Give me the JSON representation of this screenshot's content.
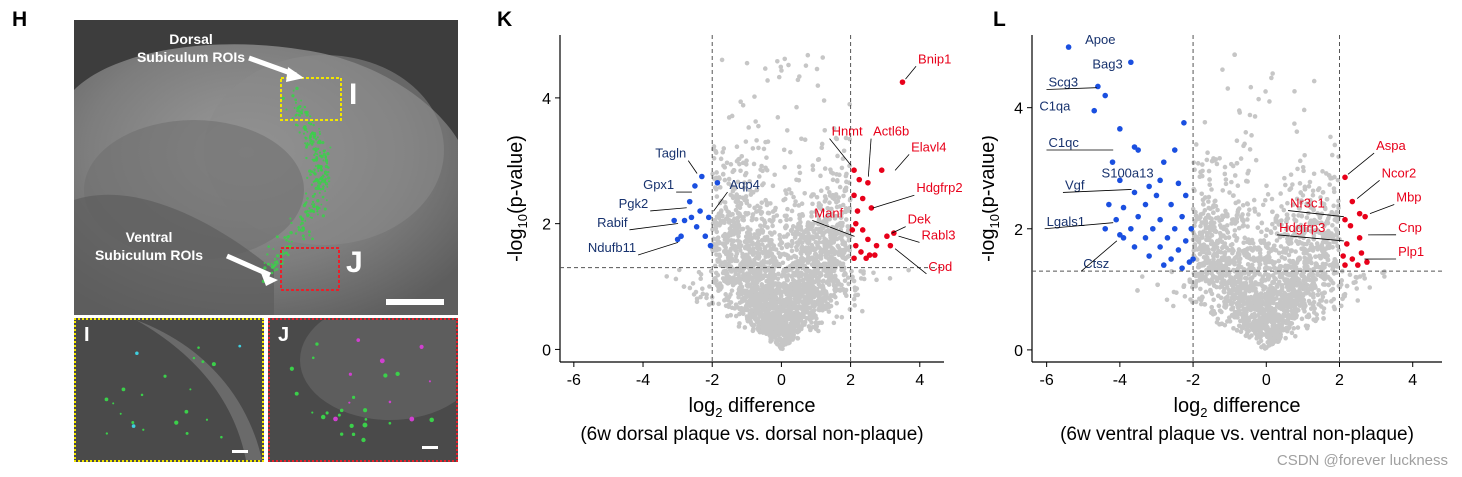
{
  "panels": {
    "h": {
      "letter": "H",
      "dorsal_label_1": "Dorsal",
      "dorsal_label_2": "Subiculum ROIs",
      "ventral_label_1": "Ventral",
      "ventral_label_2": "Subiculum ROIs",
      "roi_i": "I",
      "roi_j": "J",
      "box_colors": {
        "dorsal": "#f2e600",
        "ventral": "#e8202a"
      }
    },
    "i": {
      "letter": "I"
    },
    "j": {
      "letter": "J"
    },
    "k": {
      "letter": "K"
    },
    "l": {
      "letter": "L"
    }
  },
  "watermark": "CSDN @forever luckness",
  "colors": {
    "up": "#e8001a",
    "down": "#1a4fe0",
    "ns": "#c6c6c6",
    "label_down": "#17326e"
  },
  "chart_data": [
    {
      "type": "scatter",
      "id": "K",
      "xlabel_main": "log",
      "xlabel_sub": "2",
      "xlabel_rest": " difference",
      "xlabel_2": "(6w dorsal plaque vs. dorsal non-plaque)",
      "ylabel_main": "-log",
      "ylabel_sub": "10",
      "ylabel_rest": "(p-value)",
      "xlim": [
        -6.4,
        4.7
      ],
      "ylim": [
        -0.2,
        5.0
      ],
      "xticks": [
        -6,
        -4,
        -2,
        0,
        2,
        4
      ],
      "yticks": [
        0,
        2,
        4
      ],
      "threshold_x": [
        -2,
        2
      ],
      "threshold_y": 1.3,
      "bg_center": 0,
      "bg_spread": 1.35,
      "up_points": [
        [
          3.5,
          4.25
        ],
        [
          2.1,
          2.85
        ],
        [
          2.25,
          2.7
        ],
        [
          2.5,
          2.65
        ],
        [
          2.9,
          2.85
        ],
        [
          2.1,
          2.45
        ],
        [
          2.35,
          2.4
        ],
        [
          2.2,
          2.2
        ],
        [
          2.6,
          2.25
        ],
        [
          2.15,
          2.0
        ],
        [
          2.35,
          1.9
        ],
        [
          2.5,
          1.75
        ],
        [
          2.15,
          1.65
        ],
        [
          2.3,
          1.55
        ],
        [
          2.55,
          1.5
        ],
        [
          2.1,
          1.45
        ],
        [
          2.45,
          1.45
        ],
        [
          2.7,
          1.5
        ],
        [
          3.05,
          1.8
        ],
        [
          3.25,
          1.85
        ],
        [
          3.15,
          1.65
        ],
        [
          2.05,
          1.9
        ],
        [
          2.75,
          1.65
        ]
      ],
      "down_points": [
        [
          -2.3,
          2.75
        ],
        [
          -2.5,
          2.6
        ],
        [
          -1.85,
          2.65
        ],
        [
          -2.65,
          2.35
        ],
        [
          -2.35,
          2.2
        ],
        [
          -2.6,
          2.1
        ],
        [
          -2.8,
          2.05
        ],
        [
          -2.1,
          2.1
        ],
        [
          -3.1,
          2.05
        ],
        [
          -2.45,
          1.95
        ],
        [
          -2.2,
          1.8
        ],
        [
          -2.9,
          1.8
        ],
        [
          -2.05,
          1.65
        ],
        [
          -3.0,
          1.75
        ]
      ],
      "labels": [
        {
          "text": "Bnip1",
          "color": "up",
          "lx": 3.95,
          "ly": 4.55,
          "px": 3.5,
          "py": 4.25,
          "anchor": "start"
        },
        {
          "text": "Hnmt",
          "color": "up",
          "lx": 1.45,
          "ly": 3.4,
          "px": 2.1,
          "py": 2.88,
          "anchor": "start"
        },
        {
          "text": "Actl6b",
          "color": "up",
          "lx": 2.65,
          "ly": 3.4,
          "px": 2.6,
          "py": 2.7,
          "anchor": "start"
        },
        {
          "text": "Elavl4",
          "color": "up",
          "lx": 3.75,
          "ly": 3.15,
          "px": 3.2,
          "py": 2.8,
          "anchor": "start"
        },
        {
          "text": "Hdgfrp2",
          "color": "up",
          "lx": 3.9,
          "ly": 2.5,
          "px": 2.55,
          "py": 2.2,
          "anchor": "start"
        },
        {
          "text": "Manf",
          "color": "up",
          "lx": 0.95,
          "ly": 2.1,
          "px": 2.2,
          "py": 1.75,
          "anchor": "start"
        },
        {
          "text": "Dek",
          "color": "up",
          "lx": 3.65,
          "ly": 2.0,
          "px": 3.1,
          "py": 1.8,
          "anchor": "start"
        },
        {
          "text": "Rabl3",
          "color": "up",
          "lx": 4.05,
          "ly": 1.75,
          "px": 3.3,
          "py": 1.85,
          "anchor": "start"
        },
        {
          "text": "Cpd",
          "color": "up",
          "lx": 4.25,
          "ly": 1.25,
          "px": 3.2,
          "py": 1.65,
          "anchor": "start"
        },
        {
          "text": "Tagln",
          "color": "down",
          "lx": -2.75,
          "ly": 3.05,
          "px": -2.35,
          "py": 2.75,
          "anchor": "end"
        },
        {
          "text": "Aqp4",
          "color": "down",
          "lx": -1.5,
          "ly": 2.55,
          "px": -2.05,
          "py": 2.15,
          "anchor": "start"
        },
        {
          "text": "Gpx1",
          "color": "down",
          "lx": -3.1,
          "ly": 2.55,
          "px": -2.5,
          "py": 2.55,
          "anchor": "end"
        },
        {
          "text": "Pgk2",
          "color": "down",
          "lx": -3.85,
          "ly": 2.25,
          "px": -2.65,
          "py": 2.3,
          "anchor": "end"
        },
        {
          "text": "Rabif",
          "color": "down",
          "lx": -4.45,
          "ly": 1.95,
          "px": -2.9,
          "py": 2.05,
          "anchor": "end"
        },
        {
          "text": "Ndufb11",
          "color": "down",
          "lx": -4.2,
          "ly": 1.55,
          "px": -2.9,
          "py": 1.75,
          "anchor": "end"
        }
      ]
    },
    {
      "type": "scatter",
      "id": "L",
      "xlabel_main": "log",
      "xlabel_sub": "2",
      "xlabel_rest": " difference",
      "xlabel_2": "(6w ventral plaque vs. ventral non-plaque)",
      "ylabel_main": "-log",
      "ylabel_sub": "10",
      "ylabel_rest": "(p-value)",
      "xlim": [
        -6.4,
        4.8
      ],
      "ylim": [
        -0.2,
        5.2
      ],
      "xticks": [
        -6,
        -4,
        -2,
        0,
        2,
        4
      ],
      "yticks": [
        0,
        2,
        4
      ],
      "threshold_x": [
        -2,
        2
      ],
      "threshold_y": 1.3,
      "bg_center": 0,
      "bg_spread": 1.5,
      "up_points": [
        [
          2.15,
          2.85
        ],
        [
          2.35,
          2.45
        ],
        [
          2.55,
          2.25
        ],
        [
          2.15,
          2.15
        ],
        [
          2.7,
          2.2
        ],
        [
          2.3,
          2.05
        ],
        [
          2.55,
          1.85
        ],
        [
          2.2,
          1.75
        ],
        [
          2.6,
          1.6
        ],
        [
          2.35,
          1.5
        ],
        [
          2.15,
          1.4
        ],
        [
          2.5,
          1.4
        ],
        [
          2.75,
          1.45
        ],
        [
          2.1,
          1.55
        ]
      ],
      "down_points": [
        [
          -5.4,
          5.0
        ],
        [
          -3.7,
          4.75
        ],
        [
          -4.6,
          4.35
        ],
        [
          -4.4,
          4.2
        ],
        [
          -4.7,
          3.95
        ],
        [
          -4.0,
          3.65
        ],
        [
          -3.6,
          3.35
        ],
        [
          -2.25,
          3.75
        ],
        [
          -4.2,
          3.1
        ],
        [
          -3.5,
          3.3
        ],
        [
          -2.5,
          3.3
        ],
        [
          -2.8,
          3.1
        ],
        [
          -4.0,
          2.8
        ],
        [
          -3.2,
          2.7
        ],
        [
          -2.9,
          2.8
        ],
        [
          -2.4,
          2.75
        ],
        [
          -3.6,
          2.6
        ],
        [
          -3.0,
          2.55
        ],
        [
          -2.2,
          2.55
        ],
        [
          -4.3,
          2.4
        ],
        [
          -3.9,
          2.35
        ],
        [
          -3.3,
          2.4
        ],
        [
          -2.6,
          2.4
        ],
        [
          -4.1,
          2.15
        ],
        [
          -3.5,
          2.2
        ],
        [
          -2.9,
          2.15
        ],
        [
          -2.3,
          2.2
        ],
        [
          -4.4,
          2.0
        ],
        [
          -3.7,
          2.0
        ],
        [
          -3.1,
          2.0
        ],
        [
          -2.5,
          2.0
        ],
        [
          -2.05,
          2.0
        ],
        [
          -3.9,
          1.85
        ],
        [
          -3.3,
          1.85
        ],
        [
          -2.7,
          1.85
        ],
        [
          -2.2,
          1.8
        ],
        [
          -3.6,
          1.7
        ],
        [
          -2.9,
          1.7
        ],
        [
          -2.4,
          1.65
        ],
        [
          -3.2,
          1.55
        ],
        [
          -2.6,
          1.5
        ],
        [
          -2.1,
          1.45
        ],
        [
          -2.8,
          1.4
        ],
        [
          -2.3,
          1.35
        ],
        [
          -2.0,
          1.5
        ],
        [
          -4.0,
          1.9
        ]
      ],
      "labels": [
        {
          "text": "Apoe",
          "color": "down",
          "lx": -4.95,
          "ly": 5.05,
          "px": -5.4,
          "py": 5.0,
          "anchor": "start",
          "noline": true
        },
        {
          "text": "Bag3",
          "color": "down",
          "lx": -4.75,
          "ly": 4.65,
          "px": -3.7,
          "py": 4.75,
          "anchor": "start",
          "noline": true
        },
        {
          "text": "Scg3",
          "color": "down",
          "lx": -5.95,
          "ly": 4.35,
          "px": -4.55,
          "py": 4.28,
          "anchor": "start"
        },
        {
          "text": "C1qa",
          "color": "down",
          "lx": -6.2,
          "ly": 3.95,
          "px": -4.7,
          "py": 3.95,
          "anchor": "start",
          "noline": true
        },
        {
          "text": "C1qc",
          "color": "down",
          "lx": -5.95,
          "ly": 3.35,
          "px": -4.1,
          "py": 3.35,
          "anchor": "start"
        },
        {
          "text": "S100a13",
          "color": "down",
          "lx": -4.5,
          "ly": 2.85,
          "px": -3.1,
          "py": 2.7,
          "anchor": "start",
          "noline": true
        },
        {
          "text": "Vgf",
          "color": "down",
          "lx": -5.5,
          "ly": 2.65,
          "px": -3.6,
          "py": 2.6,
          "anchor": "start"
        },
        {
          "text": "Lgals1",
          "color": "down",
          "lx": -6.0,
          "ly": 2.05,
          "px": -4.1,
          "py": 2.15,
          "anchor": "start"
        },
        {
          "text": "Ctsz",
          "color": "down",
          "lx": -5.0,
          "ly": 1.35,
          "px": -4.0,
          "py": 1.85,
          "anchor": "start"
        },
        {
          "text": "Aspa",
          "color": "up",
          "lx": 3.0,
          "ly": 3.3,
          "px": 2.15,
          "py": 2.85,
          "anchor": "start"
        },
        {
          "text": "Ncor2",
          "color": "up",
          "lx": 3.15,
          "ly": 2.85,
          "px": 2.4,
          "py": 2.45,
          "anchor": "start"
        },
        {
          "text": "Mbp",
          "color": "up",
          "lx": 3.55,
          "ly": 2.45,
          "px": 2.75,
          "py": 2.2,
          "anchor": "start"
        },
        {
          "text": "Nr3c1",
          "color": "up",
          "lx": 0.65,
          "ly": 2.35,
          "px": 2.2,
          "py": 2.15,
          "anchor": "start"
        },
        {
          "text": "Hdgfrp3",
          "color": "up",
          "lx": 0.35,
          "ly": 1.95,
          "px": 2.2,
          "py": 1.75,
          "anchor": "start"
        },
        {
          "text": "Cnp",
          "color": "up",
          "lx": 3.6,
          "ly": 1.95,
          "px": 2.7,
          "py": 1.85,
          "anchor": "start"
        },
        {
          "text": "Plp1",
          "color": "up",
          "lx": 3.6,
          "ly": 1.55,
          "px": 2.6,
          "py": 1.45,
          "anchor": "start"
        }
      ]
    }
  ]
}
